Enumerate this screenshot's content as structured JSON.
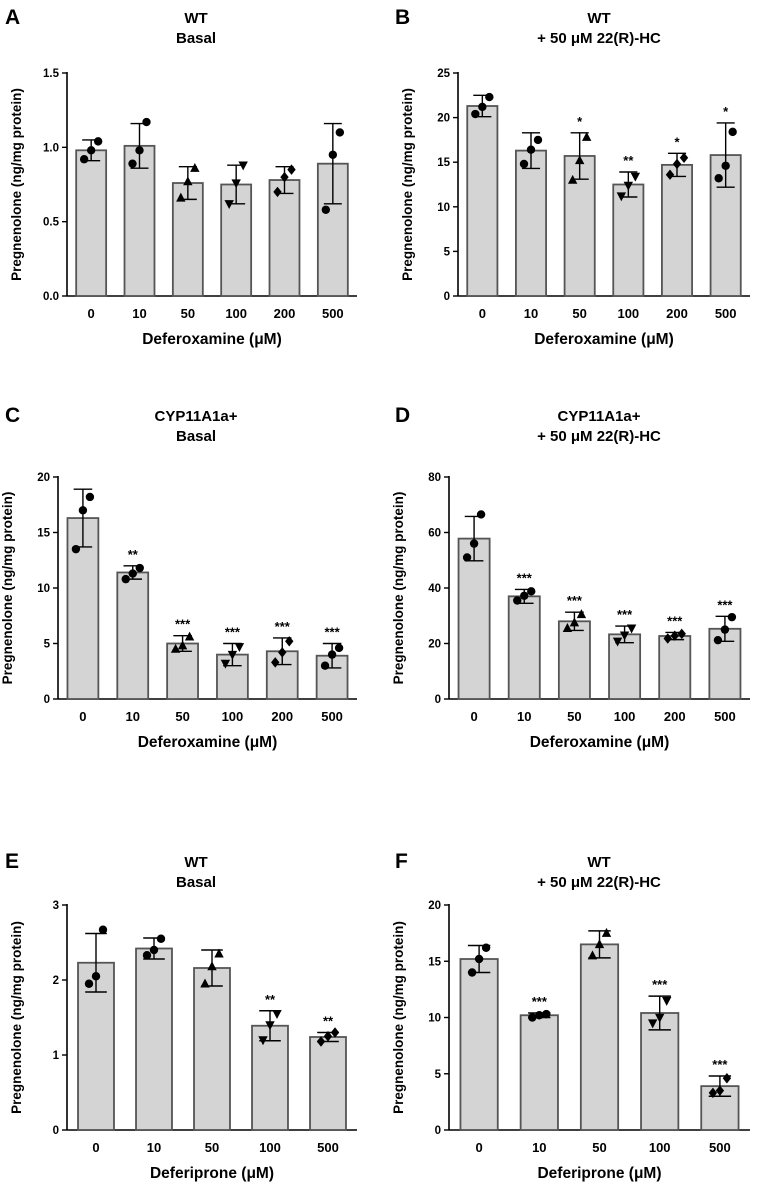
{
  "chart_data": [
    {
      "panel": "A",
      "type": "bar",
      "title": [
        "WT",
        "Basal"
      ],
      "xlabel": "Deferoxamine (μM)",
      "ylabel": "Pregnenolone (ng/mg protein)",
      "categories": [
        "0",
        "10",
        "50",
        "100",
        "200",
        "500"
      ],
      "values": [
        0.98,
        1.01,
        0.76,
        0.75,
        0.78,
        0.89
      ],
      "errors": [
        0.07,
        0.15,
        0.11,
        0.13,
        0.09,
        0.27
      ],
      "points": [
        [
          0.92,
          0.98,
          1.04
        ],
        [
          0.89,
          0.98,
          1.17
        ],
        [
          0.66,
          0.77,
          0.86
        ],
        [
          0.62,
          0.76,
          0.88
        ],
        [
          0.7,
          0.8,
          0.85
        ],
        [
          0.58,
          0.95,
          1.1
        ]
      ],
      "markers": [
        "circle",
        "circle",
        "triangle",
        "triangle-down",
        "diamond",
        "circle"
      ],
      "significance": [
        "",
        "",
        "",
        "",
        "",
        ""
      ],
      "ylim": [
        0,
        1.5
      ],
      "yticks": [
        "0.0",
        "0.5",
        "1.0",
        "1.5"
      ]
    },
    {
      "panel": "B",
      "type": "bar",
      "title": [
        "WT",
        "+ 50 μM 22(R)-HC"
      ],
      "xlabel": "Deferoxamine (μM)",
      "ylabel": "Pregnenolone (ng/mg protein)",
      "categories": [
        "0",
        "10",
        "50",
        "100",
        "200",
        "500"
      ],
      "values": [
        21.3,
        16.3,
        15.7,
        12.5,
        14.7,
        15.8
      ],
      "errors": [
        1.2,
        2.0,
        2.6,
        1.4,
        1.3,
        3.6
      ],
      "points": [
        [
          20.4,
          21.2,
          22.3
        ],
        [
          14.8,
          16.4,
          17.5
        ],
        [
          13.0,
          15.2,
          17.8
        ],
        [
          11.2,
          12.4,
          13.4
        ],
        [
          13.6,
          14.8,
          15.5
        ],
        [
          13.2,
          14.6,
          18.4
        ]
      ],
      "markers": [
        "circle",
        "circle",
        "triangle",
        "triangle-down",
        "diamond",
        "circle"
      ],
      "significance": [
        "",
        "",
        "*",
        "**",
        "*",
        "*"
      ],
      "ylim": [
        0,
        25
      ],
      "yticks": [
        "0",
        "5",
        "10",
        "15",
        "20",
        "25"
      ]
    },
    {
      "panel": "C",
      "type": "bar",
      "title": [
        "CYP11A1a+",
        "Basal"
      ],
      "xlabel": "Deferoxamine (μM)",
      "ylabel": "Pregnenolone (ng/mg protein)",
      "categories": [
        "0",
        "10",
        "50",
        "100",
        "200",
        "500"
      ],
      "values": [
        16.3,
        11.4,
        5.0,
        4.0,
        4.3,
        3.9
      ],
      "errors": [
        2.6,
        0.6,
        0.7,
        1.0,
        1.2,
        1.1
      ],
      "points": [
        [
          13.5,
          17.0,
          18.2
        ],
        [
          10.8,
          11.3,
          11.8
        ],
        [
          4.5,
          4.8,
          5.6
        ],
        [
          3.2,
          4.0,
          4.7
        ],
        [
          3.3,
          4.2,
          5.2
        ],
        [
          3.0,
          4.0,
          4.6
        ]
      ],
      "markers": [
        "circle",
        "circle",
        "triangle",
        "triangle-down",
        "diamond",
        "circle"
      ],
      "significance": [
        "",
        "**",
        "***",
        "***",
        "***",
        "***"
      ],
      "ylim": [
        0,
        20
      ],
      "yticks": [
        "0",
        "5",
        "10",
        "15",
        "20"
      ]
    },
    {
      "panel": "D",
      "type": "bar",
      "title": [
        "CYP11A1a+",
        "+ 50 μM 22(R)-HC"
      ],
      "xlabel": "Deferoxamine (μM)",
      "ylabel": "Pregnenolone (ng/mg protein)",
      "categories": [
        "0",
        "10",
        "50",
        "100",
        "200",
        "500"
      ],
      "values": [
        57.8,
        37.0,
        28.0,
        23.3,
        22.7,
        25.3
      ],
      "errors": [
        8.0,
        2.5,
        3.3,
        3.0,
        1.3,
        4.5
      ],
      "points": [
        [
          51.0,
          56.0,
          66.5
        ],
        [
          35.5,
          37.2,
          38.8
        ],
        [
          25.5,
          27.5,
          30.5
        ],
        [
          20.8,
          23.0,
          25.5
        ],
        [
          21.8,
          22.8,
          23.5
        ],
        [
          21.2,
          25.0,
          29.5
        ]
      ],
      "markers": [
        "circle",
        "circle",
        "triangle",
        "triangle-down",
        "diamond",
        "circle"
      ],
      "significance": [
        "",
        "***",
        "***",
        "***",
        "***",
        "***"
      ],
      "ylim": [
        0,
        80
      ],
      "yticks": [
        "0",
        "20",
        "40",
        "60",
        "80"
      ]
    },
    {
      "panel": "E",
      "type": "bar",
      "title": [
        "WT",
        "Basal"
      ],
      "xlabel": "Deferiprone (μM)",
      "ylabel": "Pregnenolone (ng/mg protein)",
      "categories": [
        "0",
        "10",
        "50",
        "100",
        "500"
      ],
      "values": [
        2.23,
        2.42,
        2.16,
        1.39,
        1.24
      ],
      "errors": [
        0.39,
        0.14,
        0.24,
        0.2,
        0.06
      ],
      "points": [
        [
          1.95,
          2.05,
          2.67
        ],
        [
          2.33,
          2.4,
          2.55
        ],
        [
          1.95,
          2.18,
          2.35
        ],
        [
          1.2,
          1.4,
          1.55
        ],
        [
          1.18,
          1.25,
          1.3
        ]
      ],
      "markers": [
        "circle",
        "circle",
        "triangle",
        "triangle-down",
        "diamond"
      ],
      "significance": [
        "",
        "",
        "",
        "**",
        "**"
      ],
      "ylim": [
        0,
        3
      ],
      "yticks": [
        "0",
        "1",
        "2",
        "3"
      ]
    },
    {
      "panel": "F",
      "type": "bar",
      "title": [
        "WT",
        "+ 50 μM 22(R)-HC"
      ],
      "xlabel": "Deferiprone (μM)",
      "ylabel": "Pregnenolone (ng/mg protein)",
      "categories": [
        "0",
        "10",
        "50",
        "100",
        "500"
      ],
      "values": [
        15.2,
        10.2,
        16.5,
        10.4,
        3.9
      ],
      "errors": [
        1.2,
        0.2,
        1.2,
        1.5,
        0.9
      ],
      "points": [
        [
          14.0,
          15.2,
          16.2
        ],
        [
          10.0,
          10.2,
          10.3
        ],
        [
          15.5,
          16.5,
          17.5
        ],
        [
          9.5,
          10.0,
          11.5
        ],
        [
          3.3,
          3.5,
          4.6
        ]
      ],
      "markers": [
        "circle",
        "circle",
        "triangle",
        "triangle-down",
        "diamond"
      ],
      "significance": [
        "",
        "***",
        "",
        "***",
        "***"
      ],
      "ylim": [
        0,
        20
      ],
      "yticks": [
        "0",
        "5",
        "10",
        "15",
        "20"
      ]
    }
  ]
}
